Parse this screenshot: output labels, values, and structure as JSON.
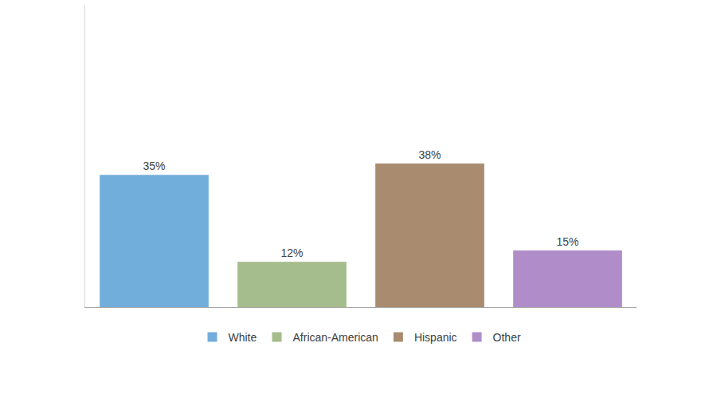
{
  "chart_data": {
    "type": "bar",
    "categories": [
      "White",
      "African-American",
      "Hispanic",
      "Other"
    ],
    "values": [
      35,
      12,
      38,
      15
    ],
    "value_labels": [
      "35%",
      "12%",
      "38%",
      "15%"
    ],
    "colors": [
      "#72aedb",
      "#a5bc8c",
      "#a98c70",
      "#b08dc9"
    ],
    "ylim": [
      0,
      80
    ],
    "data_labels": true,
    "tick_labels": false,
    "grid": false,
    "legend": "bottom"
  }
}
